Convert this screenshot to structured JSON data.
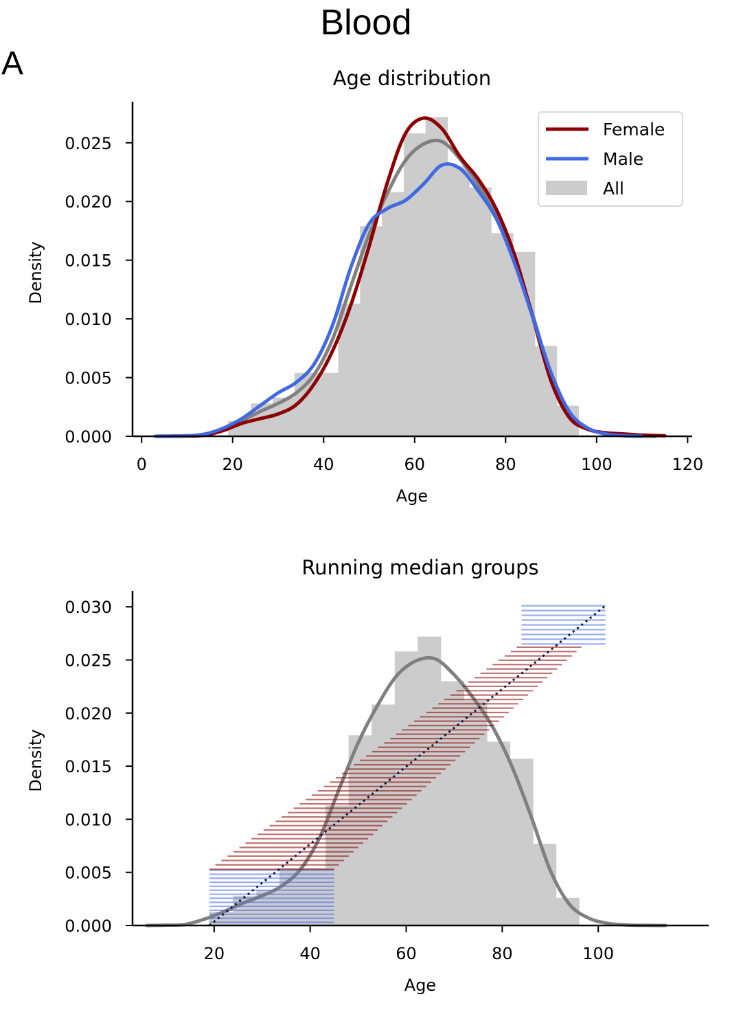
{
  "figure": {
    "title": "Blood",
    "panel_label": "A"
  },
  "colors": {
    "female": "#8b0000",
    "male": "#4169e1",
    "all_kde": "#808080",
    "hist": "#cccccc",
    "running_median": "#0b1a3a"
  },
  "chart_data": [
    {
      "type": "area",
      "title": "Age distribution",
      "xlabel": "Age",
      "ylabel": "Density",
      "xlim": [
        -2,
        121
      ],
      "ylim": [
        0,
        0.0285
      ],
      "xticks": [
        0,
        20,
        40,
        60,
        80,
        100,
        120
      ],
      "xtick_labels": [
        "0",
        "20",
        "40",
        "60",
        "80",
        "100",
        "120"
      ],
      "yticks": [
        0,
        0.005,
        0.01,
        0.015,
        0.02,
        0.025
      ],
      "ytick_labels": [
        "0.000",
        "0.005",
        "0.010",
        "0.015",
        "0.020",
        "0.025"
      ],
      "legend_position": "top-right",
      "histogram": {
        "name": "All",
        "bin_edges": [
          19,
          24,
          28.8,
          33.6,
          38.4,
          43.2,
          48,
          52.8,
          57.6,
          62.4,
          67.2,
          72,
          76.8,
          81.6,
          86.4,
          91.2,
          96
        ],
        "values": [
          0.0013,
          0.0028,
          0.0033,
          0.0054,
          0.0054,
          0.0113,
          0.0179,
          0.0208,
          0.0258,
          0.0272,
          0.023,
          0.0212,
          0.0173,
          0.0157,
          0.0077,
          0.0026
        ]
      },
      "series": [
        {
          "name": "Female",
          "x": [
            3,
            10,
            14,
            18,
            22,
            26,
            30,
            34,
            38,
            42,
            46,
            50,
            54,
            58,
            62,
            66,
            70,
            74,
            78,
            82,
            86,
            90,
            94,
            98,
            102,
            106,
            110,
            115
          ],
          "y": [
            0,
            3e-05,
            0.0001,
            0.0005,
            0.0011,
            0.0015,
            0.0019,
            0.0027,
            0.0045,
            0.0073,
            0.0112,
            0.0162,
            0.0216,
            0.0258,
            0.0271,
            0.0262,
            0.0238,
            0.0219,
            0.0193,
            0.0154,
            0.0101,
            0.0047,
            0.0016,
            0.0006,
            0.0003,
            0.0002,
            0.0001,
            4e-05
          ]
        },
        {
          "name": "Male",
          "x": [
            3,
            10,
            14,
            18,
            22,
            26,
            30,
            34,
            38,
            42,
            46,
            50,
            54,
            58,
            62,
            66,
            70,
            74,
            78,
            82,
            86,
            90,
            94,
            98,
            102,
            106,
            110
          ],
          "y": [
            0,
            4e-05,
            0.0002,
            0.0007,
            0.0015,
            0.0026,
            0.0037,
            0.0046,
            0.0062,
            0.0095,
            0.0144,
            0.0181,
            0.0194,
            0.0201,
            0.0215,
            0.0231,
            0.0228,
            0.0209,
            0.0185,
            0.0147,
            0.0101,
            0.0054,
            0.0021,
            0.0007,
            0.0002,
            5e-05,
            1e-05
          ]
        },
        {
          "name": "",
          "x": [
            3,
            10,
            14,
            18,
            22,
            26,
            30,
            34,
            38,
            42,
            46,
            50,
            54,
            58,
            62,
            66,
            70,
            74,
            78,
            82,
            86,
            90,
            94,
            98,
            102,
            106,
            110,
            113
          ],
          "y": [
            0,
            3e-05,
            0.0001,
            0.0006,
            0.0013,
            0.0021,
            0.0028,
            0.0037,
            0.0053,
            0.0083,
            0.0128,
            0.0172,
            0.0207,
            0.0235,
            0.0249,
            0.0251,
            0.0236,
            0.0214,
            0.0187,
            0.015,
            0.0103,
            0.0052,
            0.002,
            0.0007,
            0.0002,
            5e-05,
            1e-05,
            0
          ]
        }
      ]
    },
    {
      "type": "area",
      "title": "Running median groups",
      "xlabel": "Age",
      "ylabel": "Density",
      "xlim": [
        3,
        123
      ],
      "ylim": [
        0,
        0.0315
      ],
      "xticks": [
        20,
        40,
        60,
        80,
        100
      ],
      "xtick_labels": [
        "20",
        "40",
        "60",
        "80",
        "100"
      ],
      "yticks": [
        0,
        0.005,
        0.01,
        0.015,
        0.02,
        0.025,
        0.03
      ],
      "ytick_labels": [
        "0.000",
        "0.005",
        "0.010",
        "0.015",
        "0.020",
        "0.025",
        "0.030"
      ],
      "histogram": {
        "bin_edges": [
          19,
          24,
          28.8,
          33.6,
          38.4,
          43.2,
          48,
          52.8,
          57.6,
          62.4,
          67.2,
          72,
          76.8,
          81.6,
          86.4,
          91.2,
          96
        ],
        "values": [
          0.0013,
          0.0028,
          0.0033,
          0.0054,
          0.0054,
          0.0113,
          0.0179,
          0.0208,
          0.0258,
          0.0272,
          0.023,
          0.0212,
          0.0173,
          0.0157,
          0.0077,
          0.0026
        ]
      },
      "series": [
        {
          "name": "",
          "x": [
            6,
            10,
            14,
            18,
            22,
            26,
            30,
            34,
            38,
            42,
            46,
            50,
            54,
            58,
            62,
            66,
            70,
            74,
            78,
            82,
            86,
            90,
            94,
            98,
            102,
            106,
            110,
            114
          ],
          "y": [
            0,
            3e-05,
            0.0001,
            0.0006,
            0.0013,
            0.0021,
            0.0028,
            0.0037,
            0.0053,
            0.0083,
            0.0128,
            0.0172,
            0.0207,
            0.0235,
            0.0249,
            0.0251,
            0.0236,
            0.0214,
            0.0187,
            0.015,
            0.0103,
            0.0052,
            0.002,
            0.0007,
            0.0002,
            5e-05,
            1e-05,
            0
          ]
        }
      ],
      "running_median_groups": {
        "male_low": {
          "n": 14,
          "y_start": 0.0003,
          "y_end": 0.0052,
          "x_start": 19,
          "x_end": 45
        },
        "female_mid": {
          "n": 52,
          "y_start": 0.0053,
          "y_end": 0.0262,
          "x_start_first": 19,
          "x_start_last": 83,
          "x_end_first": 45,
          "x_end_last": 96.5
        },
        "male_high": {
          "n": 9,
          "y_start": 0.0265,
          "y_end": 0.0301,
          "x_start": 84,
          "x_end": 101.5
        },
        "diagonal": {
          "x_start": 19,
          "x_end": 101.5,
          "y_start": 0.0,
          "y_end": 0.0301
        }
      }
    }
  ]
}
